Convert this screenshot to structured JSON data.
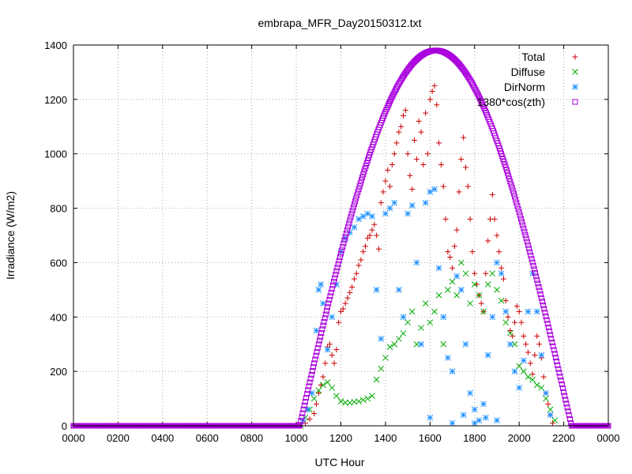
{
  "chart_data": {
    "type": "scatter",
    "title": "embrapa_MFR_Day20150312.txt",
    "xlabel": "UTC Hour",
    "ylabel": "Irradiance (W/m2)",
    "xlim": [
      0,
      2400
    ],
    "ylim": [
      0,
      1400
    ],
    "xticks": [
      "0000",
      "0200",
      "0400",
      "0600",
      "0800",
      "1000",
      "1200",
      "1400",
      "1600",
      "1800",
      "2000",
      "2200",
      "0000"
    ],
    "yticks": [
      "0",
      "200",
      "400",
      "600",
      "800",
      "1000",
      "1200",
      "1400"
    ],
    "grid": true,
    "legend_position": "top-right",
    "series": [
      {
        "name": "Total",
        "color": "#cc0000",
        "marker": "plus",
        "points": [
          [
            1020,
            0
          ],
          [
            1040,
            10
          ],
          [
            1060,
            25
          ],
          [
            1080,
            45
          ],
          [
            1090,
            80
          ],
          [
            1100,
            120
          ],
          [
            1110,
            150
          ],
          [
            1120,
            180
          ],
          [
            1130,
            230
          ],
          [
            1140,
            290
          ],
          [
            1150,
            300
          ],
          [
            1160,
            260
          ],
          [
            1170,
            230
          ],
          [
            1180,
            280
          ],
          [
            1190,
            380
          ],
          [
            1200,
            420
          ],
          [
            1210,
            430
          ],
          [
            1220,
            450
          ],
          [
            1230,
            470
          ],
          [
            1240,
            490
          ],
          [
            1250,
            510
          ],
          [
            1260,
            540
          ],
          [
            1270,
            560
          ],
          [
            1280,
            590
          ],
          [
            1290,
            610
          ],
          [
            1300,
            640
          ],
          [
            1310,
            660
          ],
          [
            1320,
            690
          ],
          [
            1330,
            700
          ],
          [
            1340,
            720
          ],
          [
            1350,
            740
          ],
          [
            1360,
            700
          ],
          [
            1370,
            650
          ],
          [
            1380,
            820
          ],
          [
            1390,
            860
          ],
          [
            1400,
            900
          ],
          [
            1410,
            940
          ],
          [
            1420,
            880
          ],
          [
            1430,
            960
          ],
          [
            1440,
            1000
          ],
          [
            1450,
            1040
          ],
          [
            1460,
            1080
          ],
          [
            1470,
            1100
          ],
          [
            1480,
            1140
          ],
          [
            1490,
            1160
          ],
          [
            1500,
            1000
          ],
          [
            1510,
            920
          ],
          [
            1520,
            870
          ],
          [
            1530,
            1050
          ],
          [
            1540,
            980
          ],
          [
            1550,
            1120
          ],
          [
            1560,
            1080
          ],
          [
            1570,
            960
          ],
          [
            1580,
            1150
          ],
          [
            1590,
            1000
          ],
          [
            1600,
            1200
          ],
          [
            1610,
            1230
          ],
          [
            1620,
            1250
          ],
          [
            1630,
            1180
          ],
          [
            1640,
            1040
          ],
          [
            1650,
            960
          ],
          [
            1660,
            880
          ],
          [
            1670,
            760
          ],
          [
            1680,
            640
          ],
          [
            1690,
            620
          ],
          [
            1700,
            580
          ],
          [
            1710,
            660
          ],
          [
            1720,
            720
          ],
          [
            1730,
            860
          ],
          [
            1740,
            980
          ],
          [
            1750,
            1060
          ],
          [
            1760,
            950
          ],
          [
            1770,
            880
          ],
          [
            1780,
            760
          ],
          [
            1790,
            640
          ],
          [
            1800,
            560
          ],
          [
            1810,
            520
          ],
          [
            1820,
            480
          ],
          [
            1830,
            450
          ],
          [
            1840,
            420
          ],
          [
            1850,
            560
          ],
          [
            1860,
            680
          ],
          [
            1870,
            760
          ],
          [
            1880,
            850
          ],
          [
            1890,
            760
          ],
          [
            1900,
            700
          ],
          [
            1910,
            640
          ],
          [
            1920,
            580
          ],
          [
            1930,
            540
          ],
          [
            1940,
            460
          ],
          [
            1950,
            400
          ],
          [
            1960,
            350
          ],
          [
            1970,
            330
          ],
          [
            1980,
            380
          ],
          [
            1990,
            440
          ],
          [
            2000,
            420
          ],
          [
            2010,
            380
          ],
          [
            2020,
            330
          ],
          [
            2030,
            300
          ],
          [
            2040,
            270
          ],
          [
            2050,
            230
          ],
          [
            2060,
            190
          ],
          [
            2070,
            260
          ],
          [
            2080,
            330
          ],
          [
            2090,
            300
          ],
          [
            2100,
            250
          ],
          [
            2110,
            180
          ],
          [
            2120,
            120
          ],
          [
            2130,
            80
          ],
          [
            2140,
            40
          ],
          [
            2150,
            10
          ]
        ]
      },
      {
        "name": "Diffuse",
        "color": "#00aa00",
        "marker": "cross",
        "points": [
          [
            1020,
            0
          ],
          [
            1040,
            30
          ],
          [
            1060,
            60
          ],
          [
            1080,
            100
          ],
          [
            1100,
            130
          ],
          [
            1120,
            150
          ],
          [
            1140,
            160
          ],
          [
            1160,
            140
          ],
          [
            1180,
            110
          ],
          [
            1200,
            90
          ],
          [
            1220,
            85
          ],
          [
            1240,
            85
          ],
          [
            1260,
            88
          ],
          [
            1280,
            90
          ],
          [
            1300,
            95
          ],
          [
            1320,
            100
          ],
          [
            1340,
            110
          ],
          [
            1360,
            170
          ],
          [
            1380,
            210
          ],
          [
            1400,
            250
          ],
          [
            1420,
            290
          ],
          [
            1440,
            300
          ],
          [
            1460,
            320
          ],
          [
            1480,
            340
          ],
          [
            1500,
            380
          ],
          [
            1520,
            420
          ],
          [
            1540,
            300
          ],
          [
            1560,
            360
          ],
          [
            1580,
            450
          ],
          [
            1600,
            380
          ],
          [
            1620,
            420
          ],
          [
            1640,
            480
          ],
          [
            1660,
            300
          ],
          [
            1680,
            500
          ],
          [
            1700,
            530
          ],
          [
            1720,
            480
          ],
          [
            1740,
            600
          ],
          [
            1760,
            560
          ],
          [
            1780,
            450
          ],
          [
            1800,
            520
          ],
          [
            1820,
            480
          ],
          [
            1840,
            420
          ],
          [
            1860,
            520
          ],
          [
            1880,
            560
          ],
          [
            1900,
            500
          ],
          [
            1920,
            460
          ],
          [
            1940,
            380
          ],
          [
            1960,
            340
          ],
          [
            1980,
            300
          ],
          [
            2000,
            220
          ],
          [
            2020,
            200
          ],
          [
            2040,
            180
          ],
          [
            2060,
            170
          ],
          [
            2080,
            150
          ],
          [
            2100,
            140
          ],
          [
            2120,
            100
          ],
          [
            2140,
            60
          ],
          [
            2160,
            20
          ]
        ]
      },
      {
        "name": "DirNorm",
        "color": "#1e90ff",
        "marker": "star",
        "points": [
          [
            1030,
            20
          ],
          [
            1050,
            60
          ],
          [
            1070,
            120
          ],
          [
            1090,
            350
          ],
          [
            1100,
            500
          ],
          [
            1110,
            520
          ],
          [
            1120,
            450
          ],
          [
            1140,
            280
          ],
          [
            1160,
            400
          ],
          [
            1180,
            520
          ],
          [
            1200,
            640
          ],
          [
            1220,
            690
          ],
          [
            1240,
            710
          ],
          [
            1260,
            730
          ],
          [
            1280,
            760
          ],
          [
            1300,
            770
          ],
          [
            1320,
            780
          ],
          [
            1340,
            770
          ],
          [
            1360,
            500
          ],
          [
            1380,
            320
          ],
          [
            1400,
            780
          ],
          [
            1420,
            800
          ],
          [
            1440,
            820
          ],
          [
            1460,
            500
          ],
          [
            1480,
            400
          ],
          [
            1500,
            780
          ],
          [
            1520,
            810
          ],
          [
            1540,
            600
          ],
          [
            1560,
            300
          ],
          [
            1580,
            820
          ],
          [
            1600,
            860
          ],
          [
            1620,
            870
          ],
          [
            1640,
            580
          ],
          [
            1660,
            400
          ],
          [
            1680,
            250
          ],
          [
            1700,
            200
          ],
          [
            1720,
            550
          ],
          [
            1740,
            500
          ],
          [
            1760,
            300
          ],
          [
            1780,
            120
          ],
          [
            1800,
            60
          ],
          [
            1820,
            20
          ],
          [
            1840,
            80
          ],
          [
            1860,
            260
          ],
          [
            1880,
            400
          ],
          [
            1900,
            600
          ],
          [
            1920,
            560
          ],
          [
            1940,
            420
          ],
          [
            1960,
            300
          ],
          [
            1980,
            200
          ],
          [
            2000,
            140
          ],
          [
            2020,
            240
          ],
          [
            2040,
            420
          ],
          [
            2060,
            560
          ],
          [
            2080,
            420
          ],
          [
            2100,
            260
          ],
          [
            2120,
            120
          ],
          [
            2140,
            40
          ],
          [
            1600,
            30
          ],
          [
            1700,
            10
          ],
          [
            1750,
            40
          ],
          [
            1800,
            10
          ],
          [
            1850,
            30
          ],
          [
            1900,
            20
          ]
        ]
      },
      {
        "name": "1380*cos(zth)",
        "color": "#aa00dd",
        "marker": "square",
        "sunrise": 1015,
        "sunset": 2235,
        "peak": 1380
      }
    ]
  }
}
